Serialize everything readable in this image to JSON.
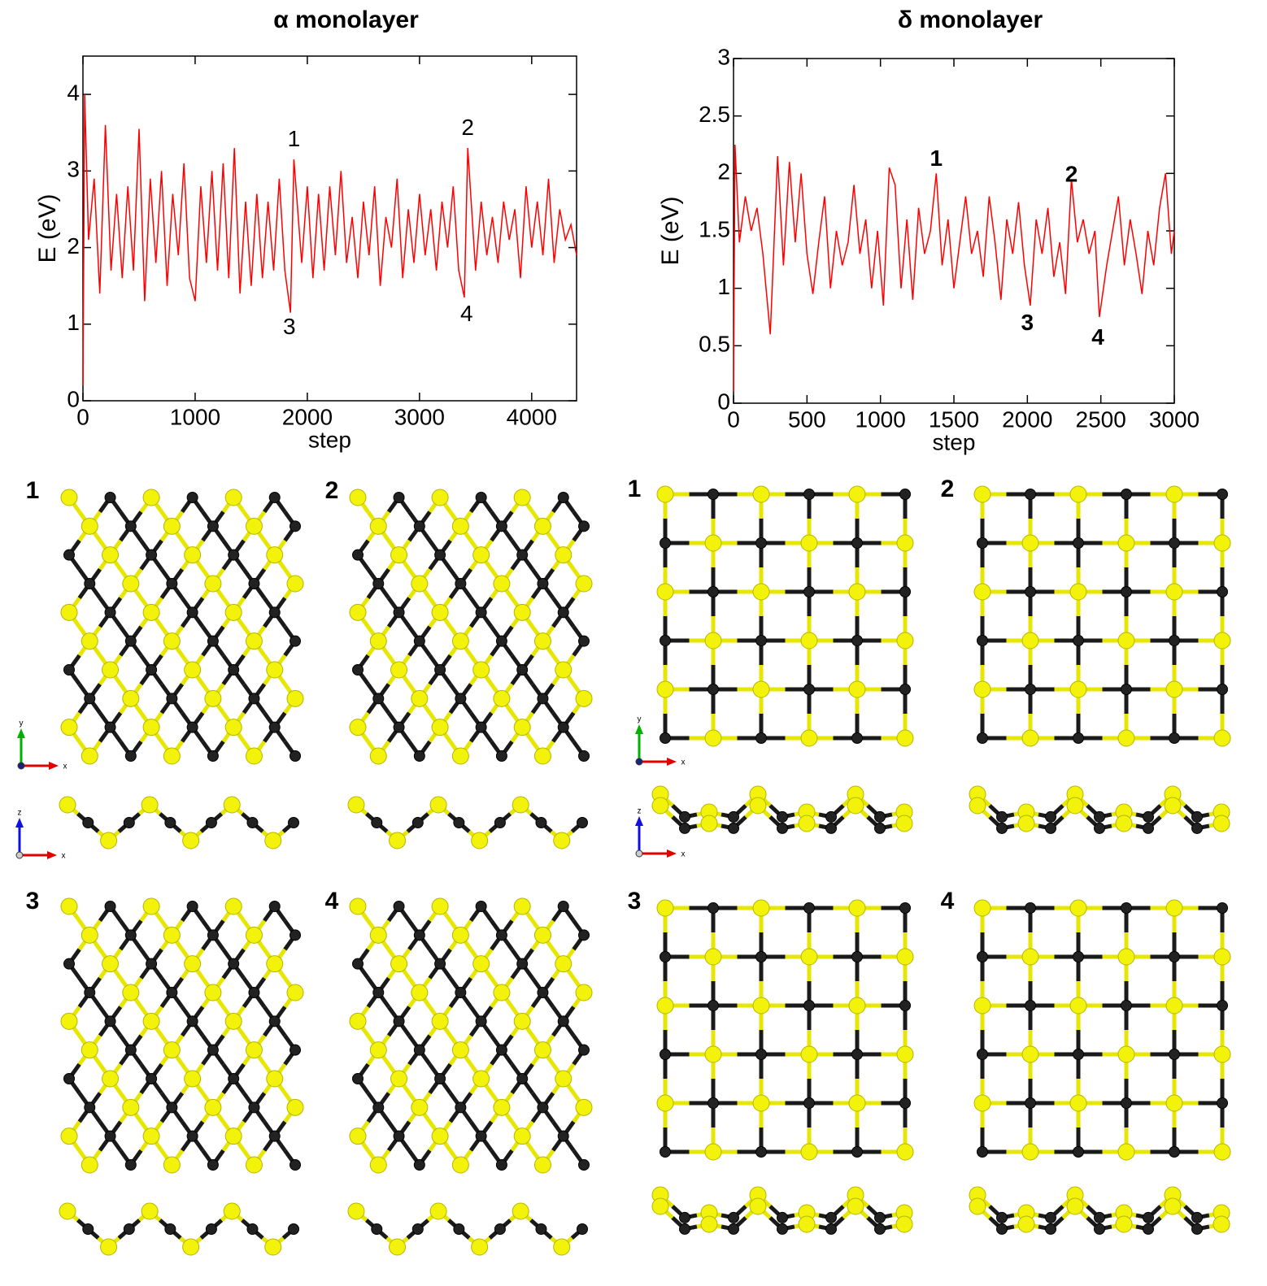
{
  "chart_data": [
    {
      "type": "line",
      "title": "α  monolayer",
      "x_label": "step",
      "y_label": "E (eV)",
      "color": "#ff0000",
      "xlim": [
        0,
        4400
      ],
      "ylim": [
        0,
        4.5
      ],
      "xticks": [
        0,
        1000,
        2000,
        3000,
        4000
      ],
      "yticks": [
        0,
        1,
        2,
        3,
        4
      ],
      "annotations": [
        "1",
        "2",
        "3",
        "4"
      ],
      "x": [
        0,
        15,
        50,
        100,
        150,
        200,
        250,
        300,
        350,
        400,
        450,
        500,
        550,
        600,
        650,
        700,
        750,
        800,
        850,
        900,
        950,
        1000,
        1050,
        1100,
        1150,
        1200,
        1250,
        1300,
        1350,
        1400,
        1450,
        1500,
        1550,
        1600,
        1650,
        1700,
        1750,
        1800,
        1850,
        1880,
        1950,
        2000,
        2050,
        2100,
        2150,
        2200,
        2250,
        2300,
        2350,
        2400,
        2450,
        2500,
        2550,
        2600,
        2650,
        2700,
        2750,
        2800,
        2850,
        2900,
        2950,
        3000,
        3050,
        3100,
        3150,
        3200,
        3250,
        3300,
        3350,
        3400,
        3430,
        3500,
        3550,
        3600,
        3650,
        3700,
        3750,
        3800,
        3850,
        3900,
        3950,
        4000,
        4050,
        4100,
        4150,
        4200,
        4250,
        4300,
        4350,
        4400
      ],
      "values": [
        0.2,
        4.0,
        2.1,
        2.9,
        1.4,
        3.6,
        1.7,
        2.7,
        1.6,
        2.8,
        1.7,
        3.55,
        1.3,
        2.9,
        1.8,
        3.0,
        1.5,
        2.7,
        1.9,
        3.1,
        1.6,
        1.3,
        2.8,
        1.8,
        3.0,
        1.7,
        3.1,
        1.6,
        3.3,
        1.4,
        2.6,
        1.5,
        2.7,
        1.6,
        2.6,
        1.7,
        2.9,
        1.7,
        1.15,
        3.15,
        1.8,
        2.8,
        1.6,
        2.7,
        1.7,
        2.8,
        1.9,
        3.0,
        1.8,
        2.4,
        1.6,
        2.6,
        1.9,
        2.8,
        1.5,
        2.4,
        2.0,
        2.9,
        1.6,
        2.5,
        1.8,
        2.7,
        1.9,
        2.5,
        1.7,
        2.6,
        2.0,
        2.8,
        1.7,
        1.35,
        3.3,
        1.7,
        2.6,
        1.9,
        2.4,
        1.8,
        2.6,
        2.1,
        2.5,
        1.6,
        2.8,
        2.0,
        2.6,
        1.9,
        2.9,
        1.8,
        2.5,
        2.1,
        2.3,
        1.9
      ]
    },
    {
      "type": "line",
      "title": "δ  monolayer",
      "x_label": "step",
      "y_label": "E (eV)",
      "color": "#ff0000",
      "xlim": [
        0,
        3000
      ],
      "ylim": [
        0,
        3
      ],
      "xticks": [
        0,
        500,
        1000,
        1500,
        2000,
        2500,
        3000
      ],
      "yticks": [
        0,
        0.5,
        1,
        1.5,
        2,
        2.5,
        3
      ],
      "annotations": [
        "1",
        "2",
        "3",
        "4"
      ],
      "x": [
        0,
        10,
        40,
        80,
        120,
        160,
        200,
        250,
        300,
        340,
        380,
        420,
        460,
        500,
        540,
        580,
        620,
        660,
        700,
        740,
        780,
        820,
        860,
        900,
        940,
        980,
        1020,
        1060,
        1100,
        1140,
        1180,
        1220,
        1260,
        1300,
        1340,
        1380,
        1420,
        1460,
        1500,
        1540,
        1580,
        1620,
        1660,
        1700,
        1740,
        1780,
        1820,
        1860,
        1900,
        1940,
        1980,
        2020,
        2060,
        2100,
        2140,
        2180,
        2220,
        2260,
        2300,
        2340,
        2380,
        2420,
        2460,
        2490,
        2540,
        2580,
        2620,
        2660,
        2700,
        2740,
        2780,
        2820,
        2860,
        2900,
        2940,
        2980,
        3000
      ],
      "values": [
        0.1,
        2.25,
        1.4,
        1.8,
        1.5,
        1.7,
        1.3,
        0.6,
        2.15,
        1.2,
        2.1,
        1.4,
        2.0,
        1.3,
        0.95,
        1.4,
        1.8,
        1.0,
        1.5,
        1.2,
        1.4,
        1.9,
        1.3,
        1.6,
        1.0,
        1.5,
        0.85,
        2.05,
        1.9,
        1.0,
        1.6,
        0.9,
        1.7,
        1.3,
        1.5,
        2.0,
        1.2,
        1.6,
        1.0,
        1.4,
        1.8,
        1.3,
        1.5,
        1.1,
        1.8,
        1.4,
        0.9,
        1.6,
        1.3,
        1.75,
        1.2,
        0.85,
        1.6,
        1.3,
        1.7,
        1.1,
        1.4,
        0.95,
        1.95,
        1.4,
        1.6,
        1.3,
        1.5,
        0.75,
        1.2,
        1.5,
        1.8,
        1.2,
        1.6,
        1.3,
        0.95,
        1.5,
        1.2,
        1.7,
        2.0,
        1.3,
        1.5
      ]
    }
  ],
  "structures": {
    "alpha_panels": [
      "1",
      "2",
      "3",
      "4"
    ],
    "delta_panels": [
      "1",
      "2",
      "3",
      "4"
    ],
    "triad_top": [
      "y",
      "x"
    ],
    "triad_side": [
      "z",
      "x"
    ]
  }
}
